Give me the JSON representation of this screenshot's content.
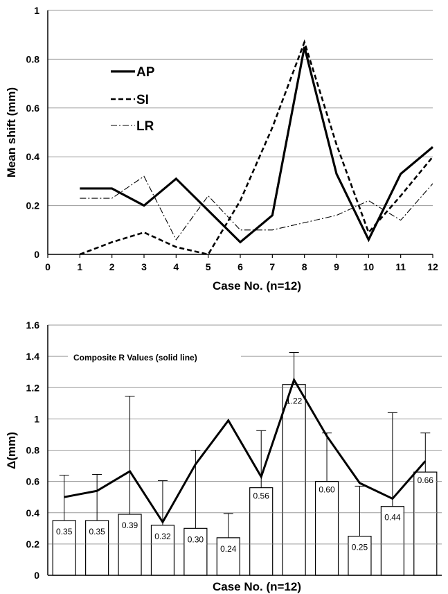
{
  "chart_data": [
    {
      "type": "line",
      "xlabel": "Case No. (n=12)",
      "ylabel": "Mean shift (mm)",
      "xlim": [
        0,
        12
      ],
      "ylim": [
        0,
        1
      ],
      "x_ticks": [
        "0",
        "1",
        "2",
        "3",
        "4",
        "5",
        "6",
        "7",
        "8",
        "9",
        "10",
        "11",
        "12"
      ],
      "y_ticks": [
        "0",
        "0.2",
        "0.4",
        "0.6",
        "0.8",
        "1"
      ],
      "grid": "horizontal",
      "legend_position": "top-left",
      "x": [
        1,
        2,
        3,
        4,
        5,
        6,
        7,
        8,
        9,
        10,
        11,
        12
      ],
      "series": [
        {
          "name": "AP",
          "style": "solid",
          "values": [
            0.27,
            0.27,
            0.2,
            0.31,
            0.18,
            0.05,
            0.16,
            0.85,
            0.33,
            0.06,
            0.33,
            0.44
          ]
        },
        {
          "name": "SI",
          "style": "dashed",
          "values": [
            0.0,
            0.05,
            0.09,
            0.03,
            0.0,
            0.22,
            0.52,
            0.87,
            0.45,
            0.09,
            0.24,
            0.4
          ]
        },
        {
          "name": "LR",
          "style": "dash-dot",
          "values": [
            0.23,
            0.23,
            0.32,
            0.06,
            0.24,
            0.1,
            0.1,
            0.13,
            0.16,
            0.22,
            0.14,
            0.29
          ]
        }
      ]
    },
    {
      "type": "bar",
      "xlabel": "Case No. (n=12)",
      "ylabel": "Δ(mm)",
      "ylim": [
        0,
        1.6
      ],
      "y_ticks": [
        "0",
        "0.2",
        "0.4",
        "0.6",
        "0.8",
        "1",
        "1.2",
        "1.4",
        "1.6"
      ],
      "grid": "horizontal",
      "annotation": "Composite R Values (solid line)",
      "values": [
        0.35,
        0.35,
        0.39,
        0.32,
        0.3,
        0.24,
        0.56,
        1.22,
        0.6,
        0.25,
        0.44,
        0.66
      ],
      "value_labels": [
        "0.35",
        "0.35",
        "0.39",
        "0.32",
        "0.30",
        "0.24",
        "0.56",
        "1.22",
        "0.60",
        "0.25",
        "0.44",
        "0.66"
      ],
      "error_upper": [
        0.64,
        0.645,
        1.145,
        0.605,
        0.8,
        0.395,
        0.925,
        1.425,
        0.91,
        0.57,
        1.04,
        0.91
      ],
      "composite_r": [
        0.5,
        0.54,
        0.665,
        0.34,
        0.71,
        0.99,
        0.63,
        1.25,
        0.89,
        0.59,
        0.49,
        0.73
      ]
    }
  ]
}
